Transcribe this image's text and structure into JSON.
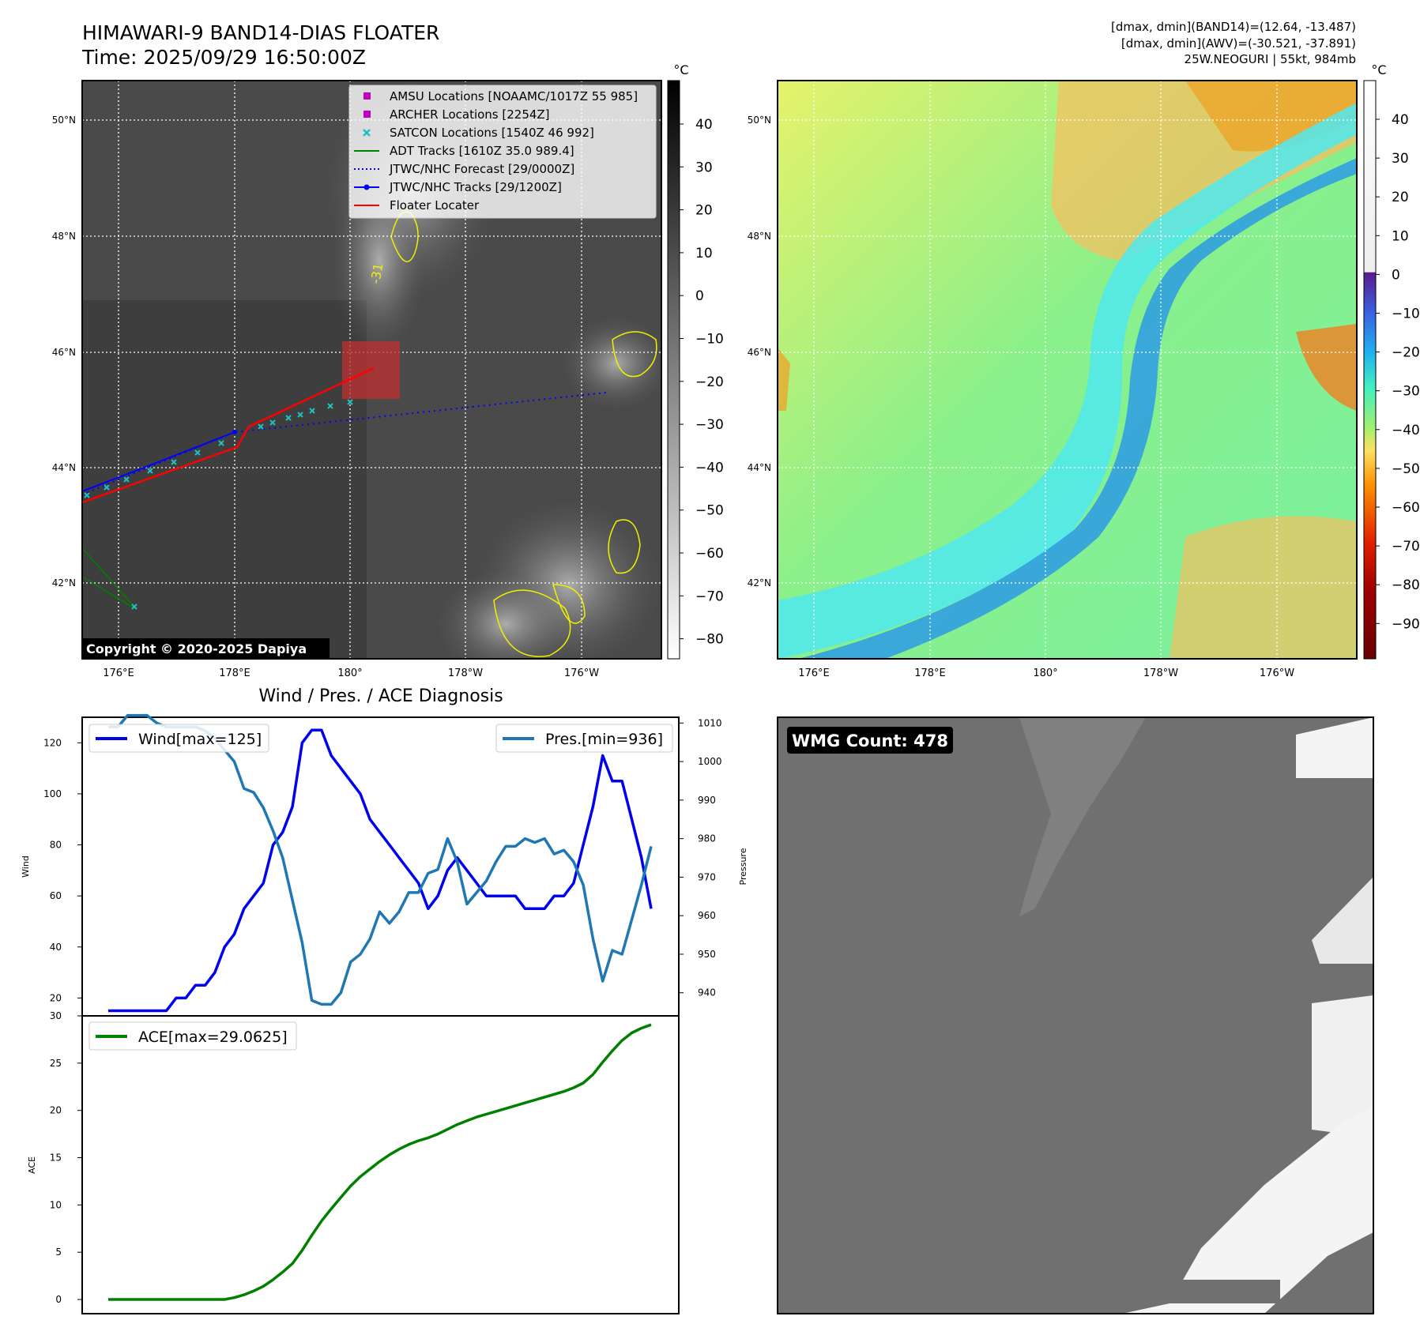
{
  "header": {
    "title_line1": "HIMAWARI-9 BAND14-DIAS FLOATER",
    "title_line2": "Time: 2025/09/29 16:50:00Z",
    "info_line1": "[dmax, dmin](BAND14)=(12.64, -13.487)",
    "info_line2": "[dmax, dmin](AWV)=(-30.521, -37.891)",
    "info_line3": "25W.NEOGURI | 55kt, 984mb"
  },
  "map": {
    "lat_labels": [
      "50°N",
      "48°N",
      "46°N",
      "44°N",
      "42°N"
    ],
    "lon_labels": [
      "176°E",
      "178°E",
      "180°",
      "178°W",
      "176°W"
    ],
    "copyright": "Copyright © 2020-2025 Dapiya",
    "contour_label": "-31",
    "legend": [
      {
        "label": "AMSU Locations [NOAAMC/1017Z 55 985]",
        "marker": "square",
        "color": "#c000c0"
      },
      {
        "label": "ARCHER Locations [2254Z]",
        "marker": "square",
        "color": "#c000c0"
      },
      {
        "label": "SATCON Locations [1540Z 46 992]",
        "marker": "x",
        "color": "#20c0c0"
      },
      {
        "label": "ADT Tracks [1610Z 35.0 989.4]",
        "marker": "line",
        "color": "#008000"
      },
      {
        "label": "JTWC/NHC Forecast [29/0000Z]",
        "marker": "dotted",
        "color": "#0000ff"
      },
      {
        "label": "JTWC/NHC Tracks [29/1200Z]",
        "marker": "dotline",
        "color": "#0000ff"
      },
      {
        "label": "Floater Locater",
        "marker": "line",
        "color": "#ff0000"
      }
    ]
  },
  "colorbar_gray": {
    "unit": "°C",
    "ticks": [
      "40",
      "30",
      "20",
      "10",
      "0",
      "−10",
      "−20",
      "−30",
      "−40",
      "−50",
      "−60",
      "−70",
      "−80"
    ]
  },
  "colorbar_color": {
    "unit": "°C",
    "ticks": [
      "40",
      "30",
      "20",
      "10",
      "0",
      "−10",
      "−20",
      "−30",
      "−40",
      "−50",
      "−60",
      "−70",
      "−80",
      "−90"
    ]
  },
  "wmg": {
    "label": "WMG Count: 478"
  },
  "chart_data": [
    {
      "type": "line",
      "title": "Wind / Pres. / ACE Diagnosis",
      "ylabel": "Wind",
      "y2label": "Pressure",
      "ylim": [
        13,
        130
      ],
      "y2lim": [
        934,
        1011.5
      ],
      "yticks": [
        20,
        40,
        60,
        80,
        100,
        120
      ],
      "y2ticks": [
        940,
        950,
        960,
        970,
        980,
        990,
        1000,
        1010
      ],
      "series": [
        {
          "name": "Wind[max=125]",
          "color": "#0000ee",
          "axis": "left",
          "values": [
            15,
            15,
            15,
            15,
            15,
            15,
            15,
            20,
            20,
            25,
            25,
            30,
            40,
            45,
            55,
            60,
            65,
            80,
            85,
            95,
            120,
            125,
            125,
            115,
            110,
            105,
            100,
            90,
            85,
            80,
            75,
            70,
            65,
            55,
            60,
            70,
            75,
            70,
            65,
            60,
            60,
            60,
            60,
            55,
            55,
            55,
            60,
            60,
            65,
            80,
            95,
            115,
            105,
            105,
            90,
            75,
            55
          ]
        },
        {
          "name": "Pres.[min=936]",
          "color": "#1f77b4",
          "axis": "right",
          "values": [
            1009,
            1009,
            1012,
            1012,
            1012,
            1010,
            1009,
            1009,
            1009,
            1009,
            1008,
            1006,
            1003,
            1000,
            993,
            992,
            988,
            982,
            975,
            964,
            953,
            938,
            937,
            937,
            940,
            948,
            950,
            954,
            961,
            958,
            961,
            966,
            966,
            971,
            972,
            980,
            974,
            963,
            966,
            969,
            974,
            978,
            978,
            980,
            979,
            980,
            976,
            977,
            974,
            968,
            954,
            943,
            951,
            950,
            959,
            968,
            978
          ]
        },
        {
          "name": "ACE[max=29.0625]",
          "color": "#008000",
          "axis": "ace",
          "values": [
            0,
            0,
            0,
            0,
            0,
            0,
            0,
            0,
            0,
            0,
            0,
            0,
            0,
            0.2,
            0.5,
            0.9,
            1.4,
            2.1,
            2.9,
            3.8,
            5.2,
            6.8,
            8.3,
            9.6,
            10.8,
            12,
            13,
            13.8,
            14.6,
            15.3,
            15.9,
            16.4,
            16.8,
            17.1,
            17.5,
            18,
            18.5,
            18.9,
            19.3,
            19.6,
            19.9,
            20.2,
            20.5,
            20.8,
            21.1,
            21.4,
            21.7,
            22,
            22.4,
            22.9,
            23.8,
            25.1,
            26.3,
            27.4,
            28.2,
            28.7,
            29.0625
          ]
        }
      ],
      "ace_ylabel": "ACE",
      "ace_ylim": [
        -1.5,
        30
      ],
      "ace_yticks": [
        0,
        5,
        10,
        15,
        20,
        25,
        30
      ]
    }
  ]
}
